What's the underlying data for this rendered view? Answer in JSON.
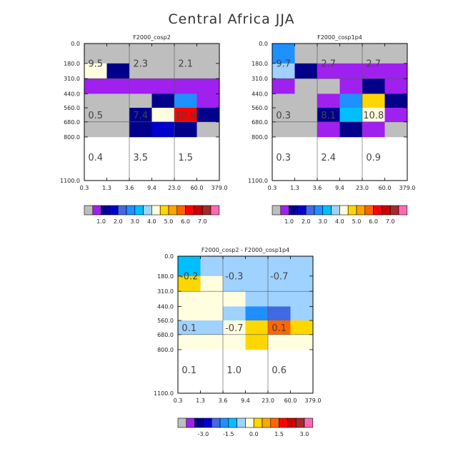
{
  "title": "Central Africa JJA",
  "palette": {
    "missing": "#bebebe",
    "bins": [
      "#a020f0",
      "#00008b",
      "#0000cd",
      "#4169e1",
      "#1e90ff",
      "#00bfff",
      "#a0d2ff",
      "#ffffe0",
      "#ffd700",
      "#ffa500",
      "#ff6600",
      "#ff0000",
      "#cd0000",
      "#a52a2a",
      "#ff69b4"
    ]
  },
  "chart_data": [
    {
      "type": "heatmap",
      "title": "F2000_cosp2",
      "x_tick_labels": [
        "0.3",
        "1.3",
        "3.6",
        "9.4",
        "23.0",
        "60.0",
        "379.0"
      ],
      "y_tick_labels": [
        "0.0",
        "180.0",
        "310.0",
        "440.0",
        "560.0",
        "680.0",
        "800.0",
        "1100.0"
      ],
      "cells": [
        [
          3,
          0,
          0,
          0,
          0,
          0
        ],
        [
          7,
          1,
          0,
          0,
          0,
          0
        ],
        [
          0,
          0,
          0,
          0,
          0,
          0
        ],
        [
          0,
          0,
          0,
          1,
          4,
          0
        ],
        [
          0,
          0,
          1,
          7,
          11,
          1
        ],
        [
          0,
          0,
          1,
          2,
          1,
          0
        ]
      ],
      "missing_cells": [
        [
          1,
          1,
          1,
          1,
          1,
          1
        ],
        [
          0,
          0,
          1,
          1,
          1,
          1
        ],
        [
          0,
          0,
          0,
          0,
          0,
          0
        ],
        [
          1,
          1,
          1,
          0,
          0,
          0
        ],
        [
          1,
          1,
          0,
          0,
          0,
          0
        ],
        [
          1,
          1,
          0,
          0,
          0,
          1
        ]
      ],
      "region_labels": [
        {
          "text": "9.5",
          "col": 0.5,
          "row": 1.0
        },
        {
          "text": "2.3",
          "col": 2.5,
          "row": 1.0
        },
        {
          "text": "2.1",
          "col": 4.5,
          "row": 1.0
        },
        {
          "text": "0.5",
          "col": 0.5,
          "row": 3.65
        },
        {
          "text": "7.4",
          "col": 2.5,
          "row": 3.65
        },
        {
          "text": "10.9",
          "col": 4.5,
          "row": 3.65
        },
        {
          "text": "0.4",
          "col": 0.5,
          "row": 5.8
        },
        {
          "text": "3.5",
          "col": 2.5,
          "row": 5.8
        },
        {
          "text": "1.5",
          "col": 4.5,
          "row": 5.8
        }
      ],
      "colorbar": {
        "labels": [
          "1.0",
          "2.0",
          "3.0",
          "4.0",
          "5.0",
          "6.0",
          "7.0"
        ]
      }
    },
    {
      "type": "heatmap",
      "title": "F2000_cosp1p4",
      "x_tick_labels": [
        "0.3",
        "1.3",
        "3.6",
        "9.4",
        "23.0",
        "60.0",
        "379.0"
      ],
      "y_tick_labels": [
        "0.0",
        "180.0",
        "310.0",
        "440.0",
        "560.0",
        "680.0",
        "800.0",
        "1100.0"
      ],
      "cells": [
        [
          4,
          0,
          0,
          0,
          0,
          0
        ],
        [
          6,
          1,
          0,
          0,
          0,
          0
        ],
        [
          0,
          0,
          0,
          0,
          1,
          0
        ],
        [
          0,
          0,
          0,
          4,
          8,
          1
        ],
        [
          0,
          0,
          1,
          5,
          7,
          0
        ],
        [
          0,
          0,
          0,
          1,
          0,
          0
        ]
      ],
      "missing_cells": [
        [
          0,
          1,
          1,
          1,
          1,
          1
        ],
        [
          0,
          0,
          0,
          0,
          0,
          0
        ],
        [
          0,
          1,
          1,
          0,
          0,
          0
        ],
        [
          1,
          1,
          0,
          0,
          0,
          0
        ],
        [
          1,
          1,
          0,
          0,
          0,
          0
        ],
        [
          1,
          1,
          0,
          0,
          0,
          1
        ]
      ],
      "region_labels": [
        {
          "text": "9.7",
          "col": 0.5,
          "row": 1.0
        },
        {
          "text": "2.7",
          "col": 2.5,
          "row": 1.0
        },
        {
          "text": "2.7",
          "col": 4.5,
          "row": 1.0
        },
        {
          "text": "0.3",
          "col": 0.5,
          "row": 3.65
        },
        {
          "text": "8.1",
          "col": 2.5,
          "row": 3.65
        },
        {
          "text": "10.8",
          "col": 4.5,
          "row": 3.65
        },
        {
          "text": "0.3",
          "col": 0.5,
          "row": 5.8
        },
        {
          "text": "2.4",
          "col": 2.5,
          "row": 5.8
        },
        {
          "text": "0.9",
          "col": 4.5,
          "row": 5.8
        }
      ],
      "colorbar": {
        "labels": [
          "1.0",
          "2.0",
          "3.0",
          "4.0",
          "5.0",
          "6.0",
          "7.0"
        ]
      }
    },
    {
      "type": "heatmap",
      "title": "F2000_cosp2 - F2000_cosp1p4",
      "x_tick_labels": [
        "0.3",
        "1.3",
        "3.6",
        "9.4",
        "23.0",
        "60.0",
        "379.0"
      ],
      "y_tick_labels": [
        "0.0",
        "180.0",
        "310.0",
        "440.0",
        "560.0",
        "680.0",
        "800.0",
        "1100.0"
      ],
      "cells": [
        [
          5,
          6,
          6,
          6,
          6,
          6
        ],
        [
          8,
          7,
          6,
          6,
          6,
          6
        ],
        [
          7,
          7,
          7,
          6,
          6,
          6
        ],
        [
          7,
          7,
          6,
          4,
          3,
          6
        ],
        [
          6,
          6,
          7,
          8,
          10,
          8
        ],
        [
          7,
          7,
          7,
          8,
          7,
          7
        ]
      ],
      "missing_cells": [
        [
          0,
          0,
          0,
          0,
          0,
          0
        ],
        [
          0,
          0,
          0,
          0,
          0,
          0
        ],
        [
          0,
          0,
          0,
          0,
          0,
          0
        ],
        [
          0,
          0,
          0,
          0,
          0,
          0
        ],
        [
          0,
          0,
          0,
          0,
          0,
          0
        ],
        [
          0,
          0,
          0,
          0,
          0,
          0
        ]
      ],
      "region_labels": [
        {
          "text": "-0.2",
          "col": 0.5,
          "row": 1.0
        },
        {
          "text": "-0.3",
          "col": 2.5,
          "row": 1.0
        },
        {
          "text": "-0.7",
          "col": 4.5,
          "row": 1.0
        },
        {
          "text": "0.1",
          "col": 0.5,
          "row": 3.65
        },
        {
          "text": "-0.7",
          "col": 2.5,
          "row": 3.65
        },
        {
          "text": "0.1",
          "col": 4.5,
          "row": 3.65
        },
        {
          "text": "0.1",
          "col": 0.5,
          "row": 5.8
        },
        {
          "text": "1.0",
          "col": 2.5,
          "row": 5.8
        },
        {
          "text": "0.6",
          "col": 4.5,
          "row": 5.8
        }
      ],
      "colorbar": {
        "labels": [
          "-3.0",
          "-1.5",
          "0.0",
          "1.5",
          "3.0"
        ]
      }
    }
  ]
}
